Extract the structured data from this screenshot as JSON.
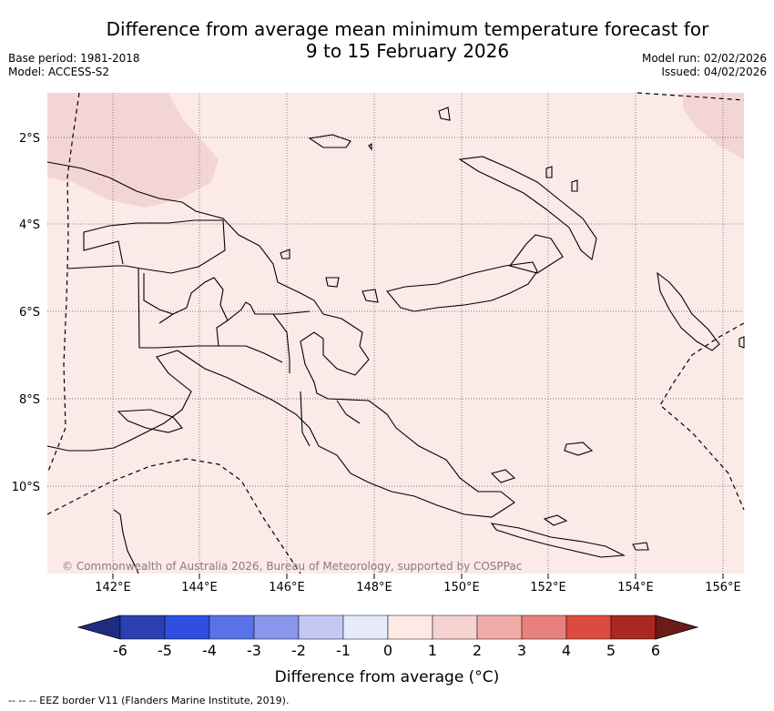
{
  "title_line1": "Difference from average mean minimum temperature forecast for",
  "title_line2": "9 to 15 February 2026",
  "meta": {
    "base_period": "Base period: 1981-2018",
    "model": "Model: ACCESS-S2",
    "model_run": "Model run: 02/02/2026",
    "issued": "Issued: 04/02/2026"
  },
  "map": {
    "region": "Papua New Guinea",
    "lon_ticks": [
      "142°E",
      "144°E",
      "146°E",
      "148°E",
      "150°E",
      "152°E",
      "154°E",
      "156°E"
    ],
    "lat_ticks": [
      "2°S",
      "4°S",
      "6°S",
      "8°S",
      "10°S"
    ],
    "copyright": "© Commonwealth of Australia 2026, Bureau of Meteorology, supported by COSPPac",
    "background_color": "#fbeae7",
    "warm_patch_color": "#f3d5d3"
  },
  "colorbar": {
    "title": "Difference from average (°C)",
    "ticks": [
      "-6",
      "-5",
      "-4",
      "-3",
      "-2",
      "-1",
      "0",
      "1",
      "2",
      "3",
      "4",
      "5",
      "6"
    ],
    "colors": [
      "#1f2d80",
      "#2a40b0",
      "#2f4fe0",
      "#5a72e8",
      "#8896ec",
      "#c3c8f3",
      "#e7eafb",
      "#fdeae6",
      "#f6d2d0",
      "#f0aca8",
      "#e8807b",
      "#dc4a40",
      "#aa2822",
      "#6e1b18"
    ]
  },
  "footnote": "--  --  -- EEZ border V11 (Flanders Marine Institute, 2019)."
}
